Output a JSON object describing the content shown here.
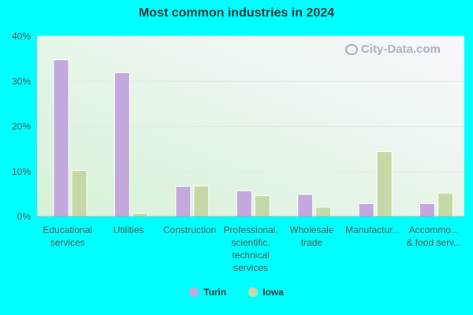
{
  "chart_data": {
    "type": "bar",
    "title": "Most common industries in 2024",
    "categories": [
      [
        "Educational",
        "services"
      ],
      [
        "Utilities"
      ],
      [
        "Construction"
      ],
      [
        "Professional,",
        "scientific,",
        "technical",
        "services"
      ],
      [
        "Wholesale",
        "trade"
      ],
      [
        "Manufactur..."
      ],
      [
        "Accommo...",
        "& food serv..."
      ]
    ],
    "series": [
      {
        "name": "Turin",
        "color": "#c2a8dd",
        "values": [
          34.8,
          31.9,
          6.7,
          5.7,
          4.9,
          2.9,
          2.9
        ]
      },
      {
        "name": "Iowa",
        "color": "#c5d9a6",
        "values": [
          10.2,
          0.7,
          6.8,
          4.6,
          2.1,
          14.4,
          5.2
        ]
      }
    ],
    "yticks": [
      "0%",
      "10%",
      "20%",
      "30%",
      "40%"
    ],
    "ylim": [
      0,
      40
    ],
    "xlabel": "",
    "ylabel": "",
    "grid": true,
    "legend_position": "bottom"
  },
  "watermark": "City-Data.com"
}
